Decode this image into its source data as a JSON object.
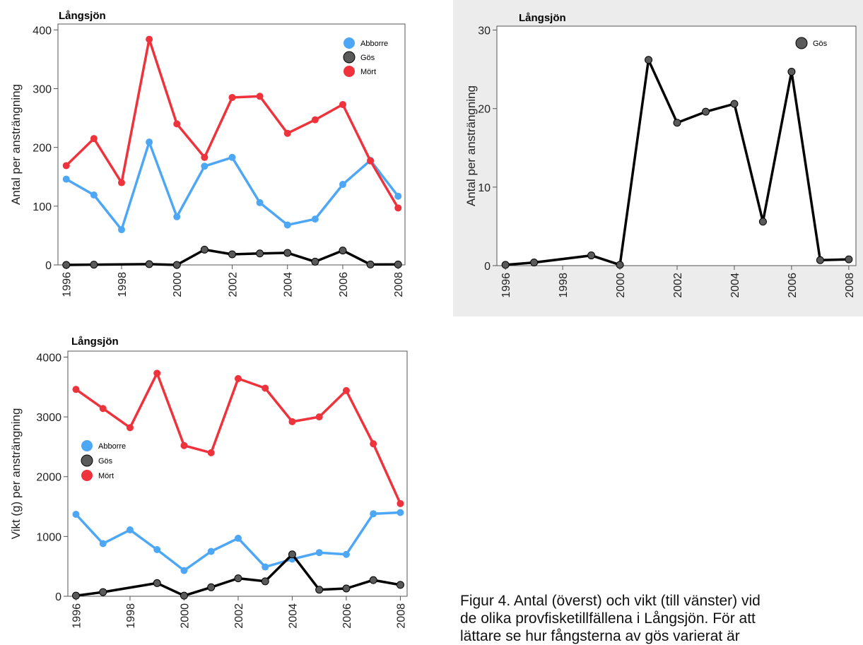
{
  "colors": {
    "abborre": "#4ea7f5",
    "gos": "#000000",
    "gos_marker": "#5a5a5a",
    "mort": "#ee333d"
  },
  "caption": {
    "lines": [
      "Figur 4. Antal (överst) och vikt (till vänster) vid",
      "de olika provfisketillfällena i Långsjön. För att",
      "lättare se hur fångsterna av gös varierat är"
    ]
  },
  "chart_data": [
    {
      "type": "line",
      "title": "Långsjön",
      "xlabel": "",
      "ylabel": "Antal per ansträngning",
      "x": [
        1996,
        1997,
        1998,
        1999,
        2000,
        2001,
        2002,
        2003,
        2004,
        2005,
        2006,
        2007,
        2008
      ],
      "xticks": [
        "1996",
        "1998",
        "2000",
        "2002",
        "2004",
        "2006",
        "2008"
      ],
      "ylim": [
        0,
        410
      ],
      "yticks": [
        0,
        100,
        200,
        300,
        400
      ],
      "legend": "top-right",
      "grid": false,
      "series": [
        {
          "name": "Abborre",
          "color": "#4ea7f5",
          "x": [
            1996,
            1997,
            1998,
            1999,
            2000,
            2001,
            2002,
            2003,
            2004,
            2005,
            2006,
            2007,
            2008
          ],
          "values": [
            146,
            119,
            60,
            209,
            82,
            168,
            183,
            106,
            68,
            78,
            137,
            178,
            117
          ]
        },
        {
          "name": "Gös",
          "color": "#000000",
          "x": [
            1996,
            1997,
            1999,
            2000,
            2001,
            2002,
            2003,
            2004,
            2005,
            2006,
            2007,
            2008
          ],
          "values": [
            0,
            0.5,
            1.3,
            0,
            26,
            18,
            19.5,
            20.5,
            5.5,
            24.5,
            0.7,
            0.8
          ]
        },
        {
          "name": "Mört",
          "color": "#ee333d",
          "x": [
            1996,
            1997,
            1998,
            1999,
            2000,
            2001,
            2002,
            2003,
            2004,
            2005,
            2006,
            2007,
            2008
          ],
          "values": [
            169,
            215,
            140,
            384,
            240,
            183,
            285,
            287,
            224,
            247,
            273,
            177,
            97
          ]
        }
      ]
    },
    {
      "type": "line",
      "title": "Långsjön",
      "xlabel": "",
      "ylabel": "Antal per ansträngning",
      "x": [
        1996,
        1997,
        1999,
        2000,
        2001,
        2002,
        2003,
        2004,
        2005,
        2006,
        2007,
        2008
      ],
      "xticks": [
        "1996",
        "1998",
        "2000",
        "2002",
        "2004",
        "2006",
        "2008"
      ],
      "ylim": [
        0,
        30.5
      ],
      "yticks": [
        0,
        10,
        20,
        30
      ],
      "legend": "top-right",
      "grid": false,
      "series": [
        {
          "name": "Gös",
          "color": "#000000",
          "x": [
            1996,
            1997,
            1999,
            2000,
            2001,
            2002,
            2003,
            2004,
            2005,
            2006,
            2007,
            2008
          ],
          "values": [
            0.1,
            0.4,
            1.3,
            0.1,
            26.2,
            18.2,
            19.6,
            20.6,
            5.6,
            24.7,
            0.7,
            0.8
          ]
        }
      ]
    },
    {
      "type": "line",
      "title": "Långsjön",
      "xlabel": "",
      "ylabel": "Vikt (g) per ansträngning",
      "x": [
        1996,
        1997,
        1998,
        1999,
        2000,
        2001,
        2002,
        2003,
        2004,
        2005,
        2006,
        2007,
        2008
      ],
      "xticks": [
        "1996",
        "1998",
        "2000",
        "2002",
        "2004",
        "2006",
        "2008"
      ],
      "ylim": [
        0,
        4100
      ],
      "yticks": [
        0,
        1000,
        2000,
        3000,
        4000
      ],
      "legend": "center-left",
      "grid": false,
      "series": [
        {
          "name": "Abborre",
          "color": "#4ea7f5",
          "x": [
            1996,
            1997,
            1998,
            1999,
            2000,
            2001,
            2002,
            2003,
            2004,
            2005,
            2006,
            2007,
            2008
          ],
          "values": [
            1370,
            880,
            1110,
            780,
            430,
            750,
            970,
            490,
            620,
            730,
            700,
            1380,
            1400
          ]
        },
        {
          "name": "Gös",
          "color": "#000000",
          "x": [
            1996,
            1997,
            1999,
            2000,
            2001,
            2002,
            2003,
            2004,
            2005,
            2006,
            2007,
            2008
          ],
          "values": [
            10,
            70,
            220,
            10,
            150,
            300,
            250,
            700,
            110,
            130,
            270,
            190
          ]
        },
        {
          "name": "Mört",
          "color": "#ee333d",
          "x": [
            1996,
            1997,
            1998,
            1999,
            2000,
            2001,
            2002,
            2003,
            2004,
            2005,
            2006,
            2007,
            2008
          ],
          "values": [
            3460,
            3140,
            2820,
            3730,
            2520,
            2400,
            3640,
            3480,
            2920,
            3000,
            3440,
            2550,
            1550
          ]
        }
      ]
    }
  ]
}
